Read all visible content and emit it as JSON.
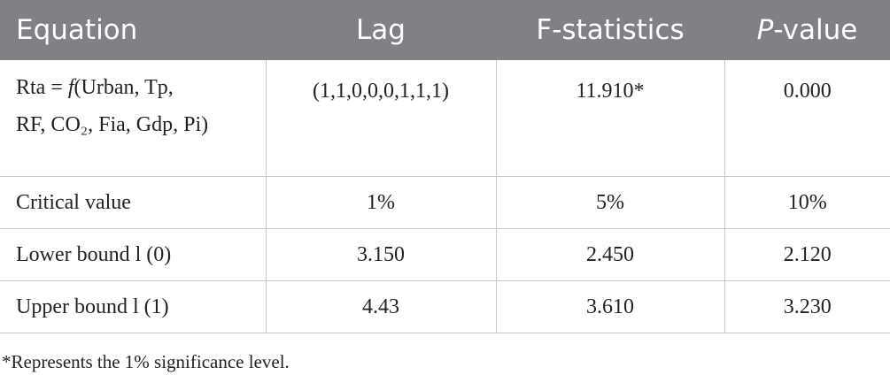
{
  "table": {
    "header": [
      "Equation",
      "Lag",
      "F-statistics",
      {
        "italic": "P",
        "rest": "-value"
      }
    ],
    "equation": {
      "prefix": "Rta = ",
      "func": "f",
      "line1": "(Urban, Tp,",
      "line2": "RF, CO₂, Fia, Gdp, Pi)"
    },
    "rows": [
      [
        null,
        "(1,1,0,0,0,1,1,1)",
        "11.910*",
        "0.000"
      ],
      [
        "Critical value",
        "1%",
        "5%",
        "10%"
      ],
      [
        "Lower bound l (0)",
        "3.150",
        "2.450",
        "2.120"
      ],
      [
        "Upper bound l (1)",
        "4.43",
        "3.610",
        "3.230"
      ]
    ]
  },
  "footnote": "*Represents the 1% significance level."
}
